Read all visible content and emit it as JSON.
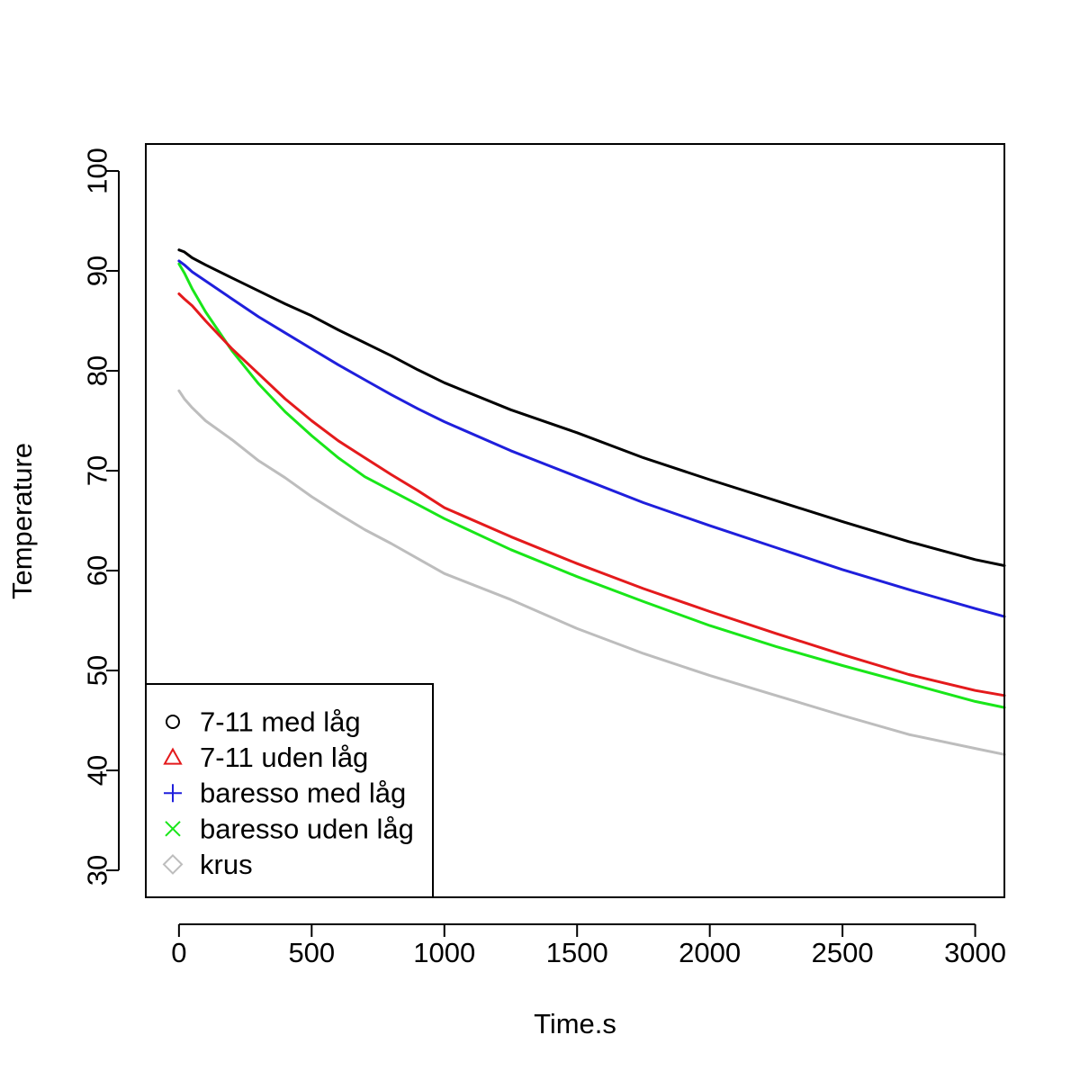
{
  "chart_data": {
    "type": "line",
    "title": "",
    "xlabel": "Time.s",
    "ylabel": "Temperature",
    "xlim": [
      -125,
      3110
    ],
    "ylim": [
      27.3,
      102.7
    ],
    "x_ticks": [
      0,
      500,
      1000,
      1500,
      2000,
      2500,
      3000
    ],
    "y_ticks": [
      30,
      40,
      50,
      60,
      70,
      80,
      90,
      100
    ],
    "grid": false,
    "legend": {
      "position": "bottom-left",
      "entries": [
        {
          "name": "7-11 med låg",
          "color": "#000000",
          "marker": "circle"
        },
        {
          "name": "7-11 uden låg",
          "color": "#e41a1c",
          "marker": "triangle"
        },
        {
          "name": "baresso med låg",
          "color": "#1f1fdc",
          "marker": "plus"
        },
        {
          "name": "baresso uden låg",
          "color": "#19e619",
          "marker": "cross"
        },
        {
          "name": "krus",
          "color": "#bdbdbd",
          "marker": "diamond"
        }
      ]
    },
    "x": [
      0,
      20,
      50,
      100,
      200,
      300,
      400,
      500,
      600,
      700,
      800,
      900,
      1000,
      1250,
      1500,
      1750,
      2000,
      2250,
      2500,
      2750,
      3000,
      3110
    ],
    "series": [
      {
        "name": "7-11 med låg",
        "color": "#000000",
        "values": [
          92.1,
          91.9,
          91.3,
          90.6,
          89.3,
          88.0,
          86.7,
          85.5,
          84.1,
          82.8,
          81.5,
          80.1,
          78.8,
          76.1,
          73.8,
          71.3,
          69.1,
          67.0,
          64.9,
          62.9,
          61.1,
          60.5
        ]
      },
      {
        "name": "7-11 uden låg",
        "color": "#e41a1c",
        "values": [
          87.7,
          87.2,
          86.5,
          85.0,
          82.2,
          79.7,
          77.2,
          75.0,
          73.0,
          71.3,
          69.6,
          68.0,
          66.3,
          63.4,
          60.7,
          58.2,
          55.9,
          53.7,
          51.6,
          49.6,
          48.0,
          47.5
        ]
      },
      {
        "name": "baresso med låg",
        "color": "#1f1fdc",
        "values": [
          91.0,
          90.6,
          89.9,
          89.0,
          87.2,
          85.4,
          83.8,
          82.2,
          80.6,
          79.1,
          77.6,
          76.2,
          74.9,
          72.0,
          69.4,
          66.8,
          64.5,
          62.3,
          60.1,
          58.1,
          56.2,
          55.4
        ]
      },
      {
        "name": "baresso uden låg",
        "color": "#19e619",
        "values": [
          90.7,
          89.8,
          88.2,
          85.9,
          82.0,
          78.7,
          75.9,
          73.5,
          71.3,
          69.4,
          68.0,
          66.6,
          65.2,
          62.1,
          59.4,
          56.9,
          54.5,
          52.4,
          50.5,
          48.7,
          46.9,
          46.3
        ]
      },
      {
        "name": "krus",
        "color": "#bdbdbd",
        "values": [
          78.0,
          77.2,
          76.3,
          75.0,
          73.1,
          71.0,
          69.3,
          67.4,
          65.7,
          64.1,
          62.7,
          61.2,
          59.7,
          57.1,
          54.2,
          51.7,
          49.5,
          47.5,
          45.5,
          43.6,
          42.2,
          41.6
        ]
      }
    ]
  }
}
